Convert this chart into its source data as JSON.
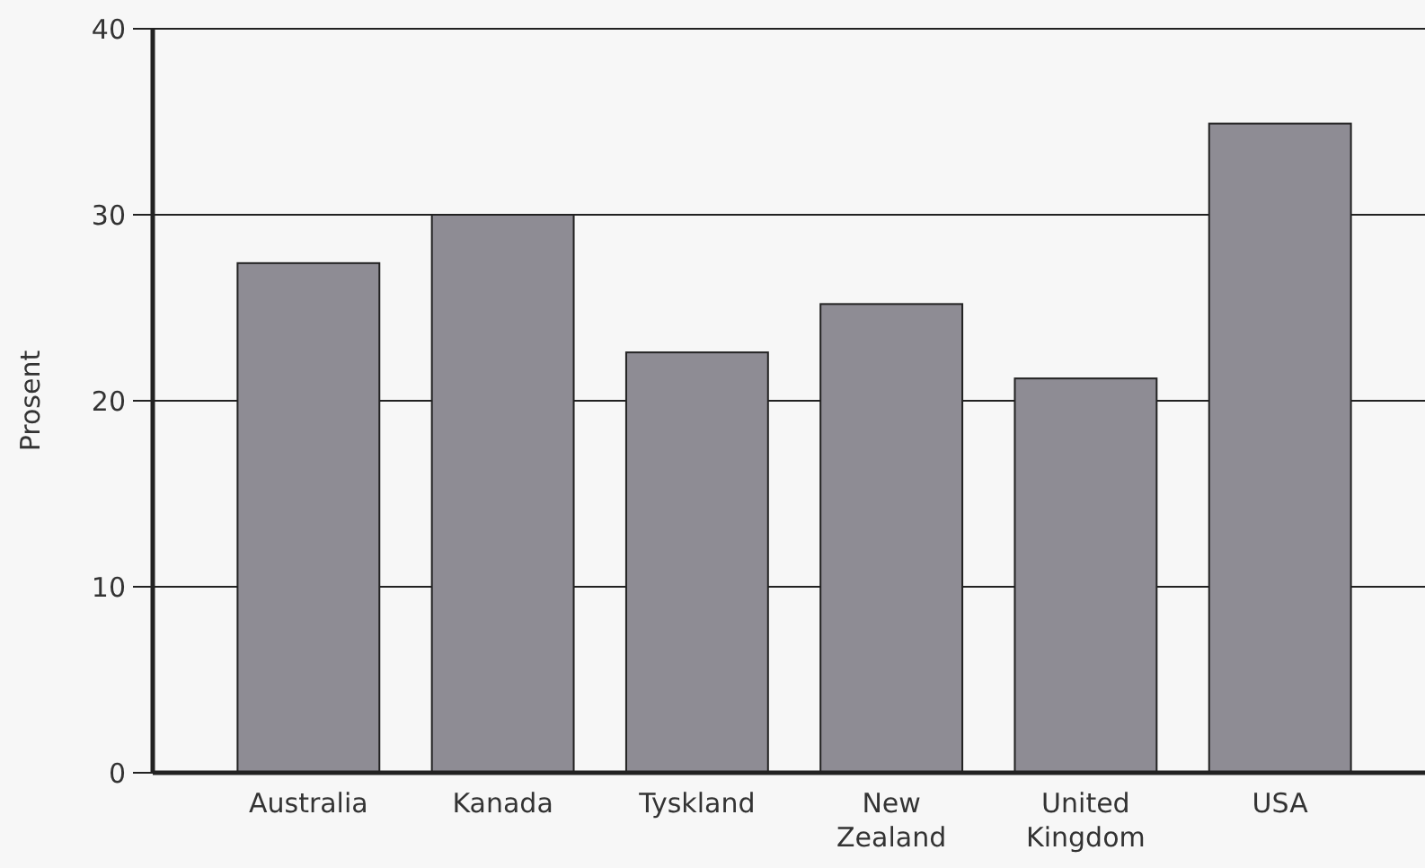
{
  "chart_data": {
    "type": "bar",
    "ylabel": "Prosent",
    "categories": [
      "Australia",
      "Kanada",
      "Tyskland",
      "New Zealand",
      "United Kingdom",
      "USA"
    ],
    "values": [
      27.4,
      30,
      22.6,
      25.2,
      21.2,
      34.9
    ],
    "color": "#8e8c94",
    "ylim": [
      0,
      40
    ],
    "yticks": [
      0,
      10,
      20,
      30,
      40
    ],
    "grid": "y"
  }
}
